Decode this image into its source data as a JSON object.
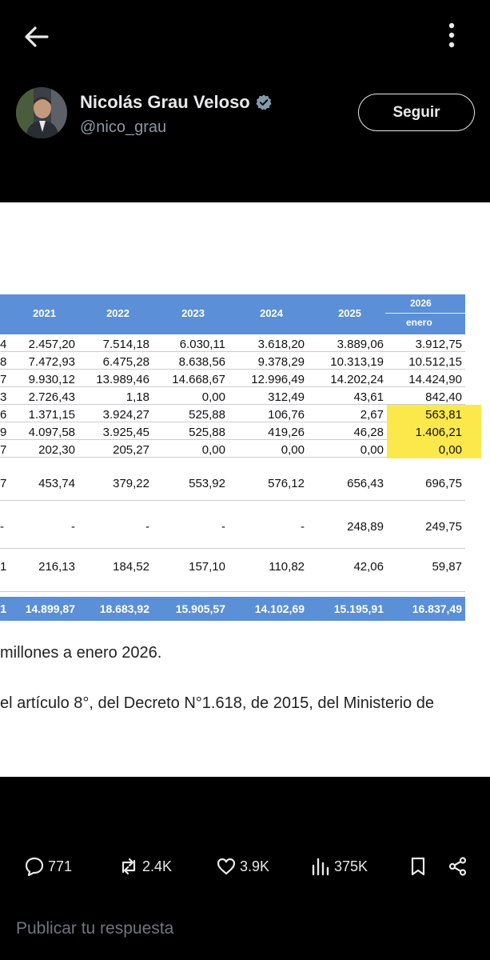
{
  "header": {
    "back_icon": "arrow-left-icon",
    "more_icon": "more-vertical-icon"
  },
  "author": {
    "name": "Nicolás Grau Veloso",
    "handle": "@nico_grau",
    "verified_icon": "verified-badge-icon",
    "follow_label": "Seguir"
  },
  "table": {
    "years": [
      "2021",
      "2022",
      "2023",
      "2024",
      "2025"
    ],
    "last_year": "2026",
    "last_year_sub": "enero",
    "rows": [
      {
        "edge": "4",
        "values": [
          "2.457,20",
          "7.514,18",
          "6.030,11",
          "3.618,20",
          "3.889,06",
          "3.912,75"
        ]
      },
      {
        "edge": "8",
        "values": [
          "7.472,93",
          "6.475,28",
          "8.638,56",
          "9.378,29",
          "10.313,19",
          "10.512,15"
        ]
      },
      {
        "edge": "7",
        "values": [
          "9.930,12",
          "13.989,46",
          "14.668,67",
          "12.996,49",
          "14.202,24",
          "14.424,90"
        ]
      },
      {
        "edge": "3",
        "values": [
          "2.726,43",
          "1,18",
          "0,00",
          "312,49",
          "43,61",
          "842,40"
        ]
      },
      {
        "edge": "6",
        "values": [
          "1.371,15",
          "3.924,27",
          "525,88",
          "106,76",
          "2,67",
          "563,81"
        ]
      },
      {
        "edge": "9",
        "values": [
          "4.097,58",
          "3.925,45",
          "525,88",
          "419,26",
          "46,28",
          "1.406,21"
        ]
      },
      {
        "edge": "7",
        "values": [
          "202,30",
          "205,27",
          "0,00",
          "0,00",
          "0,00",
          "0,00"
        ]
      },
      {
        "edge": "7",
        "values": [
          "453,74",
          "379,22",
          "553,92",
          "576,12",
          "656,43",
          "696,75"
        ]
      },
      {
        "edge": "-",
        "values": [
          "-",
          "-",
          "-",
          "-",
          "248,89",
          "249,75"
        ]
      },
      {
        "edge": "1",
        "values": [
          "216,13",
          "184,52",
          "157,10",
          "110,82",
          "42,06",
          "59,87"
        ]
      }
    ],
    "total": {
      "edge": "1",
      "values": [
        "14.899,87",
        "18.683,92",
        "15.905,57",
        "14.102,69",
        "15.195,91",
        "16.837,49"
      ]
    }
  },
  "notes": {
    "line1": "millones a enero 2026.",
    "line2": "el artículo 8°, del Decreto N°1.618, de 2015, del Ministerio de"
  },
  "actions": {
    "replies": "771",
    "reposts": "2.4K",
    "likes": "3.9K",
    "views": "375K",
    "reply_icon": "comment-icon",
    "repost_icon": "repost-icon",
    "like_icon": "heart-icon",
    "views_icon": "views-chart-icon",
    "bookmark_icon": "bookmark-icon",
    "share_icon": "share-icon"
  },
  "reply": {
    "placeholder": "Publicar tu respuesta"
  },
  "colors": {
    "background": "#000000",
    "table_header": "#5b8fd7",
    "highlight": "#fbe84a",
    "muted_text": "#8b98a5"
  }
}
